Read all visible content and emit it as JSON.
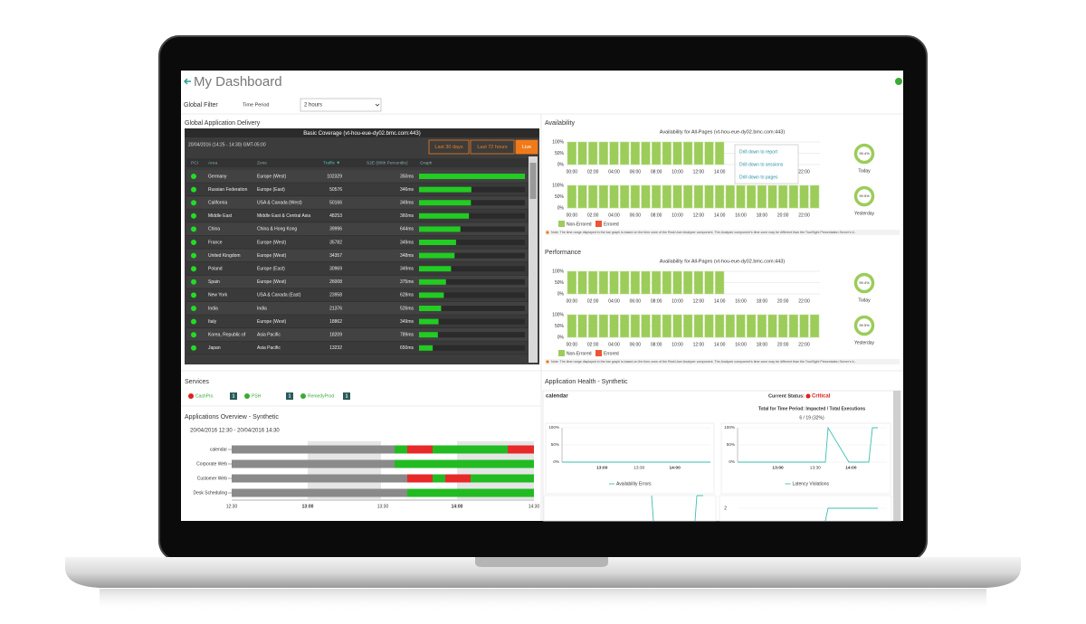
{
  "header": {
    "title": "My Dashboard"
  },
  "filter": {
    "label": "Global Filter",
    "field": "Time Period",
    "value": "2 hours"
  },
  "delivery": {
    "title": "Global Application Delivery",
    "table_title": "Basic Coverage (vt-hou-eue-dy02.bmc.com:443)",
    "date": "20/04/2016 (14:25 - 14:30) GMT-05:00",
    "buttons": [
      "Last 30 days",
      "Last 72 hours",
      "Live"
    ],
    "columns": [
      "PCI",
      "Area",
      "Zone",
      "Traffic ▼",
      "S2E (80th Percentile)",
      "Graph"
    ],
    "rows": [
      [
        "Germany",
        "Europe (West)",
        102329,
        "350ms"
      ],
      [
        "Russian Federation",
        "Europe (East)",
        50576,
        "346ms"
      ],
      [
        "California",
        "USA & Canada (West)",
        50166,
        "349ms"
      ],
      [
        "Middle East",
        "Middle East & Central Asia",
        48253,
        "360ms"
      ],
      [
        "China",
        "China & Hong Kong",
        39996,
        "644ms"
      ],
      [
        "France",
        "Europe (West)",
        35782,
        "349ms"
      ],
      [
        "United Kingdom",
        "Europe (West)",
        34357,
        "348ms"
      ],
      [
        "Poland",
        "Europe (East)",
        30969,
        "349ms"
      ],
      [
        "Spain",
        "Europe (West)",
        26008,
        "375ms"
      ],
      [
        "New York",
        "USA & Canada (East)",
        23958,
        "628ms"
      ],
      [
        "India",
        "India",
        21376,
        "526ms"
      ],
      [
        "Italy",
        "Europe (West)",
        18862,
        "349ms"
      ],
      [
        "Korea, Republic of",
        "Asia Pacific",
        18209,
        "789ms"
      ],
      [
        "Japan",
        "Asia Pacific",
        13232,
        "650ms"
      ]
    ]
  },
  "availability": {
    "title": "Availability",
    "chart_title": "Availability for All-Pages (vt-hou-eue-dy02.bmc.com:443)",
    "ylim": [
      0,
      100
    ],
    "yticks": [
      "100%",
      "50%",
      "0%"
    ],
    "xticks": [
      "00:00",
      "02:00",
      "04:00",
      "06:00",
      "08:00",
      "10:00",
      "12:00",
      "14:00",
      "16:00",
      "18:00",
      "20:00",
      "22:00"
    ],
    "today": [
      100,
      100,
      100,
      100,
      100,
      100,
      100,
      100,
      100,
      100,
      100,
      100,
      100,
      100,
      100,
      null,
      null,
      null,
      null,
      null,
      null,
      null,
      null,
      null
    ],
    "yesterday": [
      100,
      100,
      100,
      100,
      100,
      100,
      100,
      100,
      100,
      100,
      100,
      100,
      100,
      100,
      100,
      100,
      100,
      100,
      100,
      100,
      100,
      100,
      100,
      100
    ],
    "menu": [
      "Drill down to report",
      "Drill down to sessions",
      "Drill down to pages"
    ],
    "donuts": [
      {
        "value": "99.4%",
        "label": "Today"
      },
      {
        "value": "99.5%",
        "label": "Yesterday"
      }
    ],
    "legend": [
      "Non-Errored",
      "Errored"
    ],
    "note": "Note: The time range displayed in the bar graph is based on the time zone of the Real User Analyzer component. The Analyzer component's time zone may be different than the TrueSight Presentation Server's ti..."
  },
  "performance": {
    "title": "Performance",
    "chart_title": "Availability for All-Pages (vt-hou-eue-dy02.bmc.com:443)",
    "ylim": [
      0,
      100
    ],
    "yticks": [
      "100%",
      "50%",
      "0%"
    ],
    "xticks": [
      "00:00",
      "02:00",
      "04:00",
      "06:00",
      "08:00",
      "10:00",
      "12:00",
      "14:00",
      "16:00",
      "18:00",
      "20:00",
      "22:00"
    ],
    "today": [
      100,
      100,
      100,
      100,
      100,
      100,
      100,
      100,
      100,
      100,
      100,
      100,
      100,
      100,
      100,
      null,
      null,
      null,
      null,
      null,
      null,
      null,
      null,
      null
    ],
    "yesterday": [
      100,
      100,
      100,
      100,
      100,
      100,
      100,
      100,
      100,
      100,
      100,
      100,
      100,
      100,
      100,
      100,
      100,
      100,
      100,
      100,
      100,
      100,
      100,
      100
    ],
    "donuts": [
      {
        "value": "99.4%",
        "label": "Today"
      },
      {
        "value": "99.5%",
        "label": "Yesterday"
      }
    ],
    "legend": [
      "Non-Errored",
      "Errored"
    ],
    "note": "Note: The time range displayed in the bar graph is based on the time zone of the Real User Analyzer component. The Analyzer component's time zone may be different than the TrueSight Presentation Server's ti..."
  },
  "services": {
    "title": "Services",
    "items": [
      {
        "name": "CashPro",
        "count": "1",
        "status": "critical"
      },
      {
        "name": "PSH",
        "count": "1",
        "status": "ok"
      },
      {
        "name": "RemedyProd",
        "count": "1",
        "status": "ok"
      }
    ]
  },
  "overview": {
    "title": "Applications Overview - Synthetic",
    "range": "20/04/2016 12:30 - 20/04/2016 14:30",
    "rows": [
      "calendar",
      "Corporate Web",
      "Customer Web",
      "Desk Scheduling"
    ],
    "xticks": [
      "12:30",
      "13:00",
      "13:30",
      "14:00",
      "14:30"
    ]
  },
  "health": {
    "title": "Application Health - Synthetic",
    "app": "calendar",
    "status_label": "Current Status:",
    "status": "Critical",
    "total_label": "Total for Time Period: Impacted / Total Executions",
    "total": "6 / 19  (32%)",
    "yticks": [
      "100%",
      "50%",
      "0%"
    ],
    "xticks": [
      "13:00",
      "13:30",
      "14:00"
    ],
    "charts": [
      "Availability Errors",
      "Latency Violations"
    ],
    "lower_ytick": "2"
  }
}
